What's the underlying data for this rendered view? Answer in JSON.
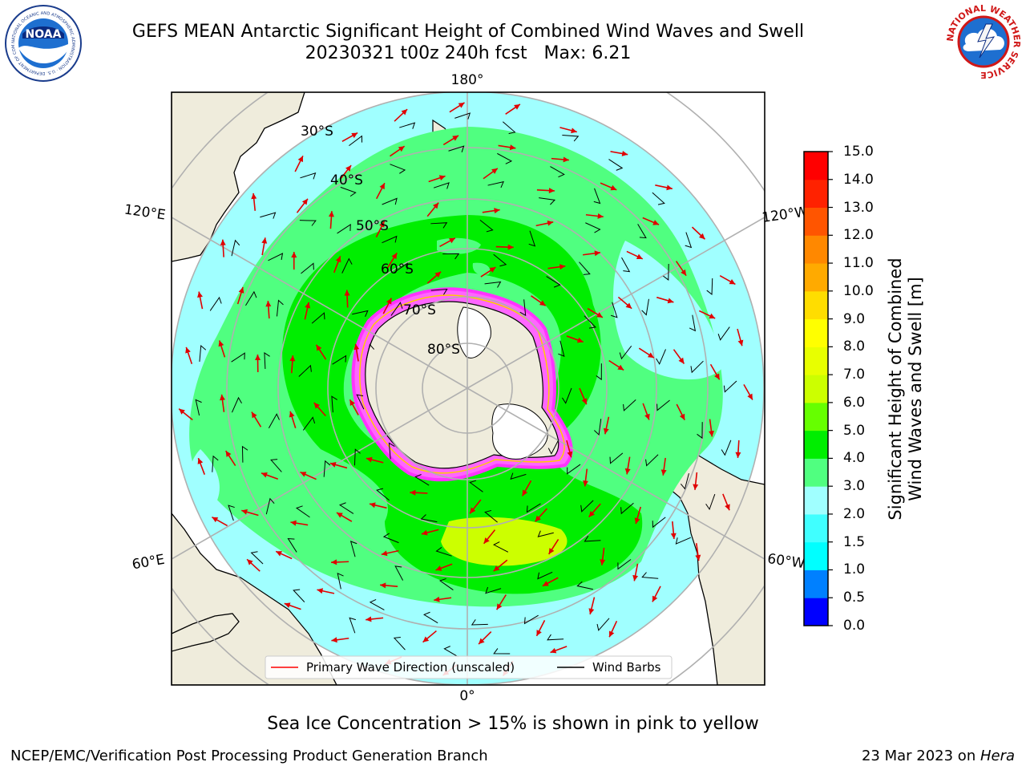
{
  "title": {
    "line1": "GEFS MEAN Antarctic Significant Height of Combined Wind Waves and Swell",
    "line2": "20230321 t00z 240h fcst   Max: 6.21"
  },
  "map": {
    "projection": "south-polar-stereographic",
    "longitude_labels": [
      "180°",
      "120°E",
      "120°W",
      "60°E",
      "60°W",
      "0°"
    ],
    "latitude_labels": [
      "30°S",
      "40°S",
      "50°S",
      "60°S",
      "70°S",
      "80°S"
    ]
  },
  "legend": {
    "items": [
      {
        "label": "Primary Wave Direction (unscaled)",
        "color": "#ff0000"
      },
      {
        "label": "Wind Barbs",
        "color": "#000000"
      }
    ]
  },
  "colorbar": {
    "title_line1": "Significant Height of Combined",
    "title_line2": "Wind Waves and Swell [m]",
    "ticks": [
      "0.0",
      "0.5",
      "1.0",
      "1.5",
      "2.0",
      "3.0",
      "4.0",
      "5.0",
      "6.0",
      "7.0",
      "8.0",
      "9.0",
      "10.0",
      "11.0",
      "12.0",
      "13.0",
      "14.0",
      "15.0"
    ],
    "colors": [
      "#0000ff",
      "#0080ff",
      "#00ffff",
      "#40ffff",
      "#a0ffff",
      "#50ff80",
      "#00ee00",
      "#66ff00",
      "#ccff00",
      "#e8ff00",
      "#ffff00",
      "#ffdd00",
      "#ffaa00",
      "#ff8800",
      "#ff5500",
      "#ff2200",
      "#ff0000"
    ]
  },
  "footer": {
    "note": "Sea Ice Concentration > 15% is shown in pink to yellow",
    "left": "NCEP/EMC/Verification Post Processing Product Generation Branch",
    "right_date": "23 Mar 2023 on ",
    "right_host": "Hera"
  },
  "logos": {
    "left": {
      "text": "NOAA",
      "ring_text": "NATIONAL OCEANIC AND ATMOSPHERIC ADMINISTRATION · U.S. DEPARTMENT OF COMMERCE"
    },
    "right": {
      "ring_text": "NATIONAL WEATHER SERVICE"
    }
  },
  "colors": {
    "land": "#efecdc",
    "ice": "#ffffff",
    "ocean_low": "#a0ffff",
    "ocean_mid": "#50ff80",
    "ocean_high": "#00ee00",
    "peak": "#ccff00",
    "sea_ice_edge": "#ff33ff"
  }
}
